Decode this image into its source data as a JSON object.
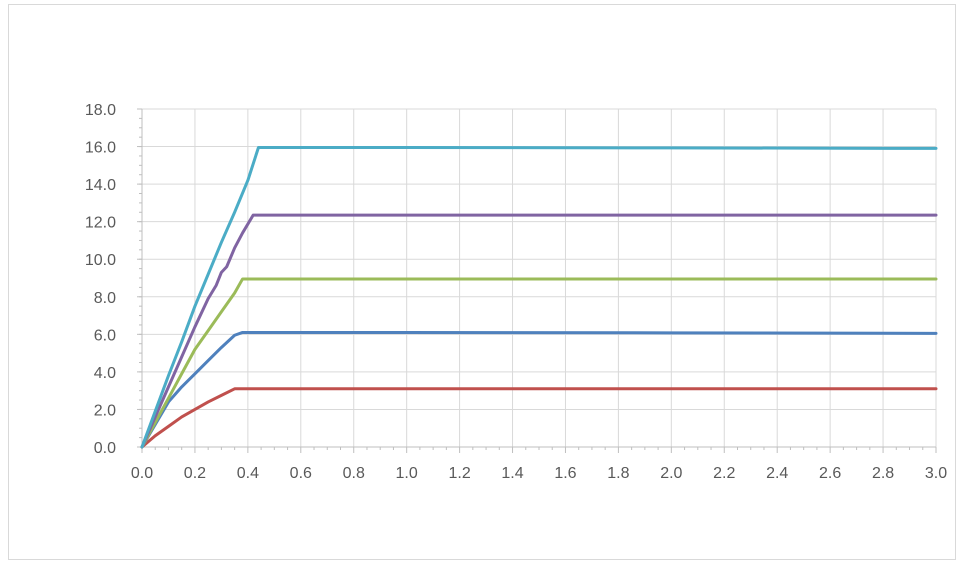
{
  "chart_data": {
    "type": "line",
    "title": "",
    "xlabel": "",
    "ylabel": "",
    "xlim": [
      0,
      3.0
    ],
    "ylim": [
      0,
      18.0
    ],
    "x_ticks": [
      "0.0",
      "0.2",
      "0.4",
      "0.6",
      "0.8",
      "1.0",
      "1.2",
      "1.4",
      "1.6",
      "1.8",
      "2.0",
      "2.2",
      "2.4",
      "2.6",
      "2.8",
      "3.0"
    ],
    "y_ticks": [
      "0.0",
      "2.0",
      "4.0",
      "6.0",
      "8.0",
      "10.0",
      "12.0",
      "14.0",
      "16.0",
      "18.0"
    ],
    "grid": true,
    "legend": "none",
    "series": [
      {
        "color": "#c0504d",
        "points": [
          [
            0,
            0
          ],
          [
            0.05,
            0.6
          ],
          [
            0.1,
            1.1
          ],
          [
            0.15,
            1.6
          ],
          [
            0.2,
            2.0
          ],
          [
            0.25,
            2.4
          ],
          [
            0.3,
            2.75
          ],
          [
            0.35,
            3.1
          ],
          [
            1.0,
            3.1
          ],
          [
            2.0,
            3.1
          ],
          [
            3.0,
            3.1
          ]
        ]
      },
      {
        "color": "#4f81bd",
        "points": [
          [
            0,
            0
          ],
          [
            0.05,
            1.2
          ],
          [
            0.1,
            2.4
          ],
          [
            0.15,
            3.2
          ],
          [
            0.2,
            3.9
          ],
          [
            0.25,
            4.6
          ],
          [
            0.3,
            5.3
          ],
          [
            0.35,
            5.95
          ],
          [
            0.38,
            6.1
          ],
          [
            1.0,
            6.1
          ],
          [
            2.0,
            6.08
          ],
          [
            3.0,
            6.05
          ]
        ]
      },
      {
        "color": "#9bbb59",
        "points": [
          [
            0,
            0
          ],
          [
            0.05,
            1.3
          ],
          [
            0.1,
            2.6
          ],
          [
            0.15,
            3.9
          ],
          [
            0.2,
            5.2
          ],
          [
            0.25,
            6.2
          ],
          [
            0.3,
            7.2
          ],
          [
            0.35,
            8.2
          ],
          [
            0.38,
            8.95
          ],
          [
            1.0,
            8.95
          ],
          [
            2.0,
            8.95
          ],
          [
            3.0,
            8.95
          ]
        ]
      },
      {
        "color": "#8064a2",
        "points": [
          [
            0,
            0
          ],
          [
            0.05,
            1.6
          ],
          [
            0.1,
            3.2
          ],
          [
            0.15,
            4.8
          ],
          [
            0.2,
            6.4
          ],
          [
            0.25,
            7.9
          ],
          [
            0.28,
            8.6
          ],
          [
            0.3,
            9.3
          ],
          [
            0.32,
            9.6
          ],
          [
            0.35,
            10.6
          ],
          [
            0.38,
            11.4
          ],
          [
            0.42,
            12.35
          ],
          [
            1.0,
            12.35
          ],
          [
            2.0,
            12.35
          ],
          [
            3.0,
            12.35
          ]
        ]
      },
      {
        "color": "#4bacc6",
        "points": [
          [
            0,
            0
          ],
          [
            0.05,
            1.9
          ],
          [
            0.1,
            3.8
          ],
          [
            0.15,
            5.6
          ],
          [
            0.2,
            7.5
          ],
          [
            0.25,
            9.2
          ],
          [
            0.3,
            10.9
          ],
          [
            0.35,
            12.5
          ],
          [
            0.4,
            14.2
          ],
          [
            0.44,
            15.95
          ],
          [
            1.0,
            15.95
          ],
          [
            2.0,
            15.93
          ],
          [
            3.0,
            15.9
          ]
        ]
      }
    ]
  }
}
